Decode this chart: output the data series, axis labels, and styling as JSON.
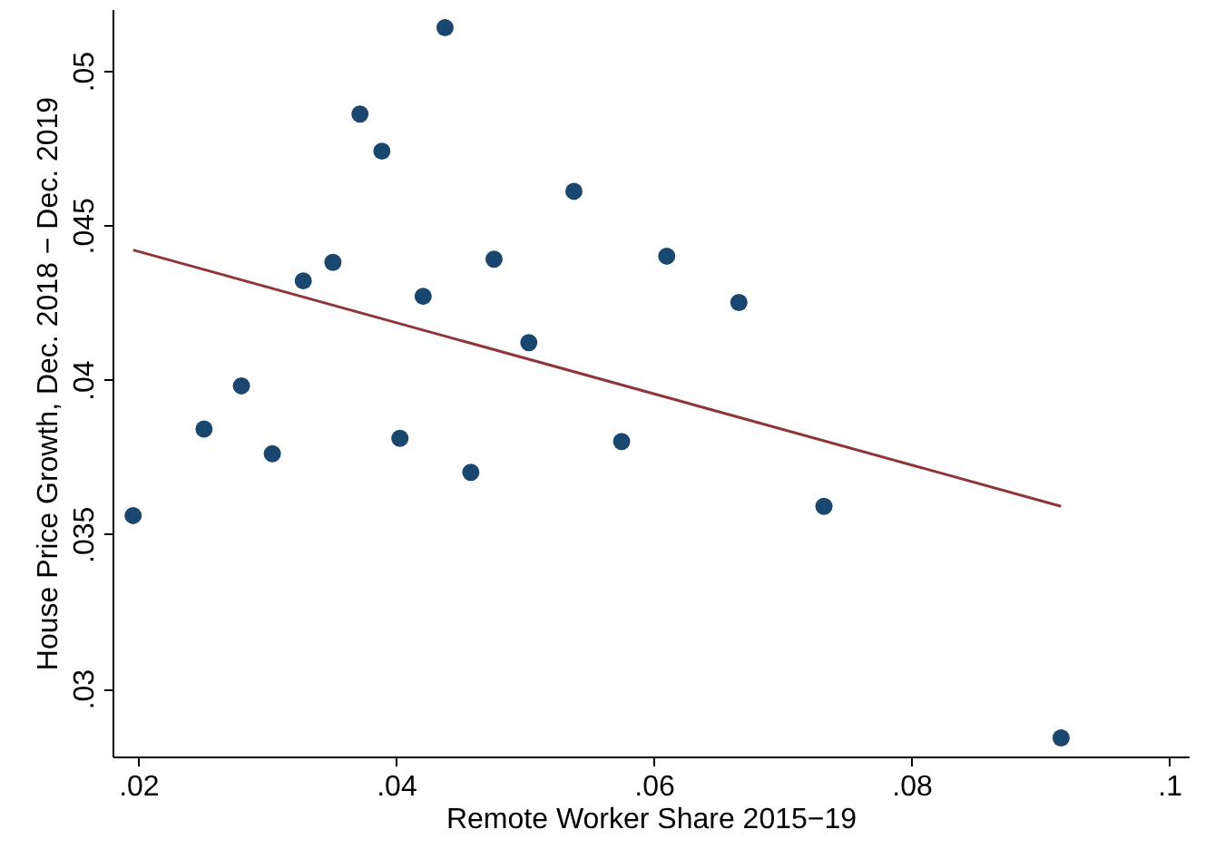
{
  "chart_data": {
    "type": "scatter",
    "xlabel": "Remote Worker Share 2015−19",
    "ylabel": "House Price Growth, Dec. 2018 − Dec. 2019",
    "xlim": [
      0.018,
      0.1015
    ],
    "ylim": [
      0.0278,
      0.052
    ],
    "xticks": [
      {
        "value": 0.02,
        "label": ".02"
      },
      {
        "value": 0.04,
        "label": ".04"
      },
      {
        "value": 0.06,
        "label": ".06"
      },
      {
        "value": 0.08,
        "label": ".08"
      },
      {
        "value": 0.1,
        "label": ".1"
      }
    ],
    "yticks": [
      {
        "value": 0.03,
        "label": ".03"
      },
      {
        "value": 0.035,
        "label": ".035"
      },
      {
        "value": 0.04,
        "label": ".04"
      },
      {
        "value": 0.045,
        "label": ".045"
      },
      {
        "value": 0.05,
        "label": ".05"
      }
    ],
    "grid": false,
    "series": [
      {
        "type": "scatter",
        "marker": "circle",
        "color": "#1a476f",
        "x": [
          0.0196,
          0.0251,
          0.028,
          0.0304,
          0.0328,
          0.0351,
          0.0372,
          0.0389,
          0.0403,
          0.0421,
          0.0438,
          0.0458,
          0.0476,
          0.0503,
          0.0538,
          0.0575,
          0.061,
          0.0666,
          0.0732,
          0.0916
        ],
        "values": [
          0.0356,
          0.0384,
          0.0398,
          0.0376,
          0.0432,
          0.0438,
          0.0486,
          0.0474,
          0.0381,
          0.0427,
          0.0514,
          0.037,
          0.0439,
          0.0412,
          0.0461,
          0.038,
          0.044,
          0.0425,
          0.0359,
          0.0284
        ]
      },
      {
        "type": "line",
        "color": "#90353b",
        "line_style": "solid",
        "x": [
          0.0196,
          0.0916
        ],
        "values": [
          0.0442,
          0.0359
        ]
      }
    ]
  }
}
